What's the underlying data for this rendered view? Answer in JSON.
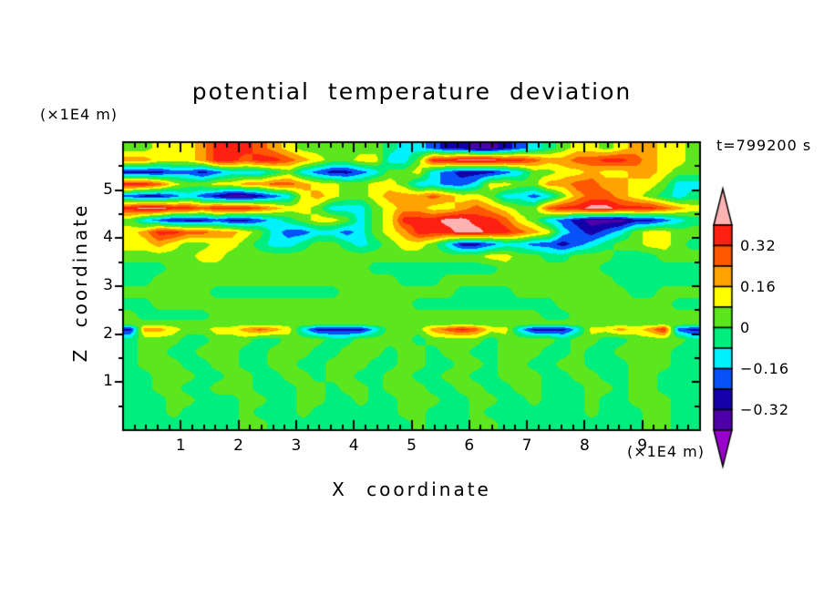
{
  "background_color": "#ffffff",
  "frame_color": "#000000",
  "text_color": "#000000",
  "chart_data": {
    "type": "filled_contour",
    "title": "potential temperature deviation",
    "xlabel": "X coordinate",
    "ylabel": "Z coordinate",
    "x_unit": "(×1E4 m)",
    "y_unit": "(×1E4 m)",
    "time_annotation": "t=799200 s",
    "x_range": [
      0,
      10
    ],
    "z_range": [
      0,
      6
    ],
    "x_major_ticks": [
      1,
      2,
      3,
      4,
      5,
      6,
      7,
      8,
      9
    ],
    "x_minor_step": 0.2,
    "z_major_ticks": [
      1,
      2,
      3,
      4,
      5
    ],
    "z_minor_step": 0.5,
    "contour_interval": 0.08,
    "level_boundaries": [
      -0.4,
      -0.32,
      -0.24,
      -0.16,
      -0.08,
      0,
      0.08,
      0.16,
      0.24,
      0.32,
      0.4
    ],
    "band_colors_low_to_high": [
      "#9900cc",
      "#4d00a8",
      "#1400a8",
      "#0850f8",
      "#00f2ff",
      "#00ee7d",
      "#5ce61e",
      "#ffff00",
      "#ffa300",
      "#ff5800",
      "#ff2014",
      "#ffb2b2"
    ],
    "colorbar": {
      "orientation": "vertical",
      "labels": [
        "0.32",
        "0.16",
        "0",
        "−0.16",
        "−0.32"
      ],
      "labeled_boundary_values": [
        0.32,
        0.16,
        0,
        -0.16,
        -0.32
      ],
      "arrow_caps": true
    },
    "grid": {
      "x_start": 0.125,
      "x_step": 0.25,
      "n_cols": 40,
      "z_row_edges": [
        6,
        5.75,
        5.5,
        5.25,
        5,
        4.75,
        4.5,
        4.25,
        4,
        3.75,
        3.5,
        3.25,
        3,
        2.75,
        2.5,
        2.25,
        2.17,
        2.03,
        1.75,
        1.5,
        1.25,
        1,
        0.75,
        0.5,
        0.25,
        0
      ],
      "values": [
        [
          0.04,
          0.04,
          0.12,
          0.12,
          0.12,
          0.2,
          0.36,
          0.36,
          0.36,
          0.28,
          0.2,
          0.12,
          0.04,
          0.04,
          0.04,
          0.04,
          0.04,
          0.04,
          -0.04,
          -0.12,
          -0.12,
          -0.2,
          -0.28,
          -0.28,
          -0.36,
          -0.36,
          -0.28,
          -0.2,
          -0.12,
          -0.04,
          0.04,
          0.12,
          0.12,
          0.04,
          0.12,
          0.2,
          0.2,
          0.12,
          0.12,
          0.04
        ],
        [
          0.2,
          0.2,
          0.12,
          0.12,
          0.12,
          0.2,
          0.36,
          0.36,
          0.28,
          0.36,
          0.36,
          0.28,
          0.2,
          0.12,
          0.04,
          0.04,
          0.12,
          0.12,
          -0.12,
          -0.12,
          0.04,
          0.36,
          0.36,
          0.44,
          0.44,
          0.44,
          0.36,
          0.36,
          0.28,
          0.2,
          0.2,
          0.28,
          0.28,
          0.36,
          0.36,
          0.28,
          0.2,
          0.12,
          0.12,
          0.04
        ],
        [
          -0.28,
          -0.28,
          -0.28,
          -0.2,
          -0.2,
          -0.28,
          -0.2,
          -0.12,
          -0.12,
          -0.12,
          -0.04,
          0.04,
          -0.12,
          -0.2,
          -0.28,
          -0.28,
          -0.2,
          -0.12,
          0.04,
          0.04,
          0.12,
          -0.12,
          -0.2,
          -0.28,
          -0.28,
          -0.28,
          -0.2,
          -0.12,
          0.04,
          0.04,
          0.12,
          0.12,
          0.2,
          0.12,
          0.12,
          0.2,
          0.2,
          0.12,
          0.04,
          0.04
        ],
        [
          0.36,
          0.36,
          0.28,
          0.12,
          0.04,
          0.04,
          0.12,
          0.12,
          0.2,
          0.2,
          0.28,
          0.28,
          0.2,
          0.12,
          0.12,
          0.04,
          0.04,
          0.12,
          0.12,
          0.04,
          -0.12,
          -0.12,
          -0.2,
          -0.2,
          -0.12,
          0.12,
          0.12,
          0.04,
          0.04,
          0.2,
          0.2,
          0.28,
          0.28,
          0.2,
          0.2,
          0.12,
          0.12,
          0.04,
          -0.12,
          -0.12
        ],
        [
          -0.2,
          -0.28,
          -0.28,
          -0.2,
          -0.12,
          -0.2,
          -0.28,
          -0.36,
          -0.36,
          -0.28,
          -0.2,
          -0.12,
          0.12,
          0.2,
          0.12,
          0.04,
          0.04,
          0.12,
          0.2,
          0.2,
          0.2,
          0.28,
          0.2,
          0.12,
          0.12,
          0.04,
          -0.12,
          -0.12,
          -0.2,
          -0.12,
          0.04,
          0.2,
          0.28,
          0.28,
          0.2,
          0.12,
          0.04,
          -0.04,
          -0.12,
          -0.04
        ],
        [
          0.36,
          0.44,
          0.44,
          0.36,
          0.36,
          0.28,
          0.36,
          0.36,
          0.36,
          0.28,
          0.2,
          0.12,
          0.12,
          0.04,
          -0.12,
          -0.12,
          -0.12,
          0.04,
          0.12,
          0.2,
          0.2,
          0.12,
          0.12,
          0.2,
          0.28,
          0.2,
          0.12,
          0.04,
          0.04,
          0.28,
          0.36,
          0.36,
          0.44,
          0.44,
          0.36,
          0.36,
          0.36,
          0.28,
          0.2,
          0.12
        ],
        [
          0.04,
          -0.12,
          -0.2,
          -0.28,
          -0.28,
          -0.28,
          -0.2,
          -0.28,
          -0.28,
          -0.2,
          -0.12,
          -0.04,
          0.04,
          0.12,
          0.12,
          0.04,
          -0.12,
          0.04,
          0.12,
          0.36,
          0.36,
          0.36,
          0.44,
          0.44,
          0.36,
          0.36,
          0.28,
          0.12,
          0.04,
          -0.12,
          -0.2,
          -0.28,
          -0.36,
          -0.36,
          -0.36,
          -0.28,
          -0.28,
          -0.2,
          -0.12,
          -0.04
        ],
        [
          0.12,
          0.2,
          0.36,
          0.36,
          0.28,
          0.28,
          0.2,
          0.2,
          0.12,
          0.04,
          -0.12,
          -0.2,
          -0.2,
          -0.12,
          -0.12,
          -0.2,
          -0.12,
          0.04,
          0.12,
          0.2,
          0.36,
          0.36,
          0.36,
          0.44,
          0.44,
          0.36,
          0.36,
          0.28,
          0.2,
          0.12,
          -0.12,
          -0.2,
          -0.28,
          -0.2,
          -0.12,
          0.04,
          0.12,
          0.12,
          0.04,
          0.04
        ],
        [
          0.12,
          0.12,
          0.2,
          0.12,
          0.04,
          0.04,
          0.12,
          0.12,
          0.04,
          -0.04,
          -0.12,
          -0.12,
          -0.04,
          0.04,
          0.04,
          -0.04,
          -0.12,
          -0.04,
          0.04,
          0.12,
          0.12,
          0.04,
          -0.12,
          -0.28,
          -0.28,
          -0.2,
          -0.12,
          -0.12,
          -0.2,
          -0.2,
          -0.28,
          -0.2,
          -0.12,
          -0.04,
          0.04,
          0.04,
          0.12,
          0.12,
          0.04,
          -0.04
        ],
        [
          0.04,
          0.04,
          0.04,
          0.04,
          0.04,
          0.12,
          0.12,
          0.04,
          0.04,
          0.04,
          0.04,
          0.04,
          0.04,
          0.04,
          0.04,
          0.04,
          0.04,
          0.04,
          0.04,
          0.04,
          0.04,
          0.04,
          0.04,
          0.04,
          0.04,
          0.12,
          0.12,
          0.04,
          0.04,
          -0.04,
          -0.04,
          0.04,
          0.04,
          0.04,
          -0.04,
          -0.04,
          -0.04,
          0.04,
          0.04,
          0.04
        ],
        [
          -0.04,
          -0.04,
          -0.04,
          0.04,
          0.04,
          0.04,
          0.04,
          0.04,
          0.04,
          0.04,
          0.04,
          0.04,
          0.04,
          0.04,
          0.04,
          0.04,
          0.04,
          -0.04,
          -0.04,
          -0.04,
          -0.04,
          -0.04,
          -0.04,
          -0.04,
          -0.04,
          -0.04,
          0.04,
          0.04,
          0.04,
          0.04,
          0.04,
          0.04,
          0.04,
          -0.04,
          -0.04,
          -0.04,
          -0.04,
          -0.04,
          -0.04,
          -0.04
        ],
        [
          -0.04,
          -0.04,
          0.04,
          0.04,
          0.04,
          0.04,
          0.04,
          0.04,
          0.04,
          0.04,
          0.04,
          0.04,
          0.04,
          0.04,
          0.04,
          0.04,
          0.04,
          0.04,
          0.04,
          -0.04,
          -0.04,
          -0.04,
          0.04,
          0.04,
          0.04,
          0.04,
          0.04,
          0.04,
          0.04,
          0.04,
          0.04,
          0.04,
          0.04,
          0.04,
          -0.04,
          -0.04,
          -0.04,
          -0.04,
          -0.04,
          -0.04
        ],
        [
          0.04,
          0.04,
          0.04,
          0.04,
          0.04,
          0.04,
          -0.04,
          -0.04,
          -0.04,
          -0.04,
          -0.04,
          -0.04,
          -0.04,
          -0.04,
          -0.04,
          0.04,
          0.04,
          0.04,
          0.04,
          0.04,
          0.04,
          0.04,
          0.04,
          -0.04,
          -0.04,
          -0.04,
          -0.04,
          0.04,
          0.04,
          0.04,
          0.04,
          0.04,
          0.04,
          0.04,
          0.04,
          -0.04,
          -0.04,
          0.04,
          0.04,
          0.04
        ],
        [
          -0.04,
          -0.04,
          0.04,
          0.04,
          0.04,
          0.04,
          0.04,
          0.04,
          0.04,
          0.04,
          0.04,
          0.04,
          0.04,
          0.04,
          0.04,
          0.04,
          0.04,
          0.04,
          0.04,
          0.04,
          -0.04,
          -0.04,
          -0.04,
          -0.04,
          -0.04,
          -0.04,
          -0.04,
          -0.04,
          -0.04,
          -0.04,
          0.04,
          0.04,
          0.04,
          0.04,
          0.04,
          0.04,
          0.04,
          0.04,
          -0.04,
          -0.04
        ],
        [
          0.04,
          -0.04,
          -0.04,
          -0.04,
          -0.04,
          -0.04,
          0.04,
          0.04,
          0.04,
          0.04,
          0.04,
          0.04,
          0.04,
          0.04,
          0.04,
          0.04,
          0.04,
          0.04,
          0.04,
          0.04,
          0.04,
          0.04,
          0.04,
          0.04,
          0.04,
          0.04,
          0.04,
          0.04,
          0.04,
          -0.04,
          -0.04,
          0.04,
          0.04,
          0.04,
          0.04,
          0.04,
          0.04,
          0.04,
          0.04,
          0.04
        ],
        [
          0.04,
          0.04,
          0.04,
          0.04,
          0.04,
          0.04,
          0.04,
          0.04,
          0.04,
          0.04,
          0.04,
          0.04,
          0.04,
          0.04,
          0.04,
          0.04,
          0.04,
          0.04,
          0.04,
          0.04,
          0.04,
          0.04,
          0.04,
          0.04,
          0.04,
          0.04,
          0.04,
          0.04,
          0.04,
          0.04,
          0.04,
          0.04,
          0.04,
          0.04,
          0.04,
          0.04,
          0.04,
          0.04,
          0.04,
          0.04
        ],
        [
          -0.28,
          0.2,
          0.2,
          0.12,
          0.04,
          0.04,
          0.12,
          0.12,
          0.2,
          0.28,
          0.2,
          0.12,
          -0.12,
          -0.28,
          -0.28,
          -0.28,
          -0.28,
          -0.12,
          0.04,
          0.04,
          0.04,
          0.2,
          0.28,
          0.36,
          0.28,
          0.12,
          0.12,
          -0.12,
          -0.28,
          -0.28,
          -0.28,
          -0.12,
          0.12,
          0.12,
          0.2,
          0.12,
          0.2,
          0.36,
          -0.2,
          -0.28
        ],
        [
          -0.04,
          0.04,
          0.04,
          0.04,
          -0.04,
          -0.04,
          0.04,
          0.04,
          0.04,
          -0.04,
          -0.04,
          0.04,
          0.04,
          0.04,
          -0.04,
          -0.04,
          0.04,
          0.04,
          0.04,
          0.04,
          -0.04,
          0.04,
          0.04,
          0.04,
          0.04,
          -0.04,
          0.04,
          0.04,
          0.04,
          0.04,
          -0.04,
          0.04,
          0.04,
          -0.04,
          -0.04,
          0.04,
          0.04,
          0.04,
          0.04,
          -0.04
        ],
        [
          -0.04,
          0.04,
          0.04,
          -0.04,
          -0.04,
          0.04,
          0.04,
          0.04,
          -0.04,
          -0.04,
          0.04,
          0.04,
          0.04,
          -0.04,
          -0.04,
          0.04,
          0.04,
          0.04,
          -0.04,
          0.04,
          0.04,
          -0.04,
          0.04,
          0.04,
          -0.04,
          -0.04,
          0.04,
          0.04,
          0.04,
          -0.04,
          -0.04,
          0.04,
          -0.04,
          -0.04,
          0.04,
          0.04,
          0.04,
          0.04,
          -0.04,
          -0.04
        ],
        [
          -0.04,
          0.04,
          0.04,
          0.04,
          -0.04,
          -0.04,
          0.04,
          0.04,
          -0.04,
          -0.04,
          0.04,
          0.04,
          -0.04,
          -0.04,
          0.04,
          0.04,
          0.04,
          -0.04,
          -0.04,
          0.04,
          0.04,
          -0.04,
          -0.04,
          0.04,
          0.04,
          -0.04,
          0.04,
          0.04,
          -0.04,
          -0.04,
          0.04,
          0.04,
          -0.04,
          -0.04,
          -0.04,
          0.04,
          0.04,
          0.04,
          -0.04,
          -0.04
        ],
        [
          -0.04,
          -0.04,
          0.04,
          0.04,
          0.04,
          -0.04,
          -0.04,
          0.04,
          0.04,
          -0.04,
          -0.04,
          0.04,
          0.04,
          -0.04,
          0.04,
          0.04,
          -0.04,
          -0.04,
          0.04,
          0.04,
          -0.04,
          -0.04,
          0.04,
          0.04,
          -0.04,
          -0.04,
          0.04,
          0.04,
          0.04,
          -0.04,
          -0.04,
          0.04,
          0.04,
          -0.04,
          -0.04,
          0.04,
          0.04,
          -0.04,
          -0.04,
          -0.04
        ],
        [
          -0.04,
          -0.04,
          0.04,
          0.04,
          -0.04,
          -0.04,
          0.04,
          0.04,
          0.04,
          -0.04,
          -0.04,
          -0.04,
          0.04,
          0.04,
          -0.04,
          0.04,
          0.04,
          -0.04,
          0.04,
          0.04,
          0.04,
          -0.04,
          -0.04,
          0.04,
          0.04,
          -0.04,
          -0.04,
          0.04,
          0.04,
          -0.04,
          -0.04,
          -0.04,
          0.04,
          0.04,
          -0.04,
          0.04,
          0.04,
          -0.04,
          -0.04,
          -0.04
        ],
        [
          -0.04,
          -0.04,
          -0.04,
          0.04,
          0.04,
          -0.04,
          -0.04,
          -0.04,
          0.04,
          0.04,
          -0.04,
          -0.04,
          0.04,
          0.04,
          -0.04,
          -0.04,
          0.04,
          -0.04,
          -0.04,
          0.04,
          0.04,
          0.04,
          -0.04,
          -0.04,
          0.04,
          0.04,
          -0.04,
          -0.04,
          0.04,
          -0.04,
          -0.04,
          -0.04,
          0.04,
          -0.04,
          -0.04,
          0.04,
          0.04,
          0.04,
          -0.04,
          -0.04
        ],
        [
          -0.04,
          -0.04,
          -0.04,
          0.04,
          -0.04,
          -0.04,
          -0.04,
          -0.04,
          0.04,
          -0.04,
          -0.04,
          -0.04,
          0.04,
          -0.04,
          -0.04,
          -0.04,
          -0.04,
          -0.04,
          -0.04,
          0.04,
          0.04,
          -0.04,
          -0.04,
          -0.04,
          0.04,
          -0.04,
          -0.04,
          -0.04,
          -0.04,
          -0.04,
          -0.04,
          -0.04,
          0.04,
          -0.04,
          -0.04,
          -0.04,
          0.04,
          0.04,
          -0.04,
          -0.04
        ],
        [
          -0.04,
          -0.04,
          -0.04,
          -0.04,
          -0.04,
          -0.04,
          -0.04,
          -0.04,
          0.04,
          0.04,
          -0.04,
          -0.04,
          -0.04,
          -0.04,
          -0.04,
          -0.04,
          -0.04,
          -0.04,
          -0.04,
          -0.04,
          0.04,
          -0.04,
          -0.04,
          -0.04,
          0.04,
          0.04,
          -0.04,
          -0.04,
          -0.04,
          -0.04,
          -0.04,
          -0.04,
          -0.04,
          -0.04,
          -0.04,
          -0.04,
          0.04,
          0.04,
          -0.04,
          -0.04
        ]
      ]
    }
  }
}
